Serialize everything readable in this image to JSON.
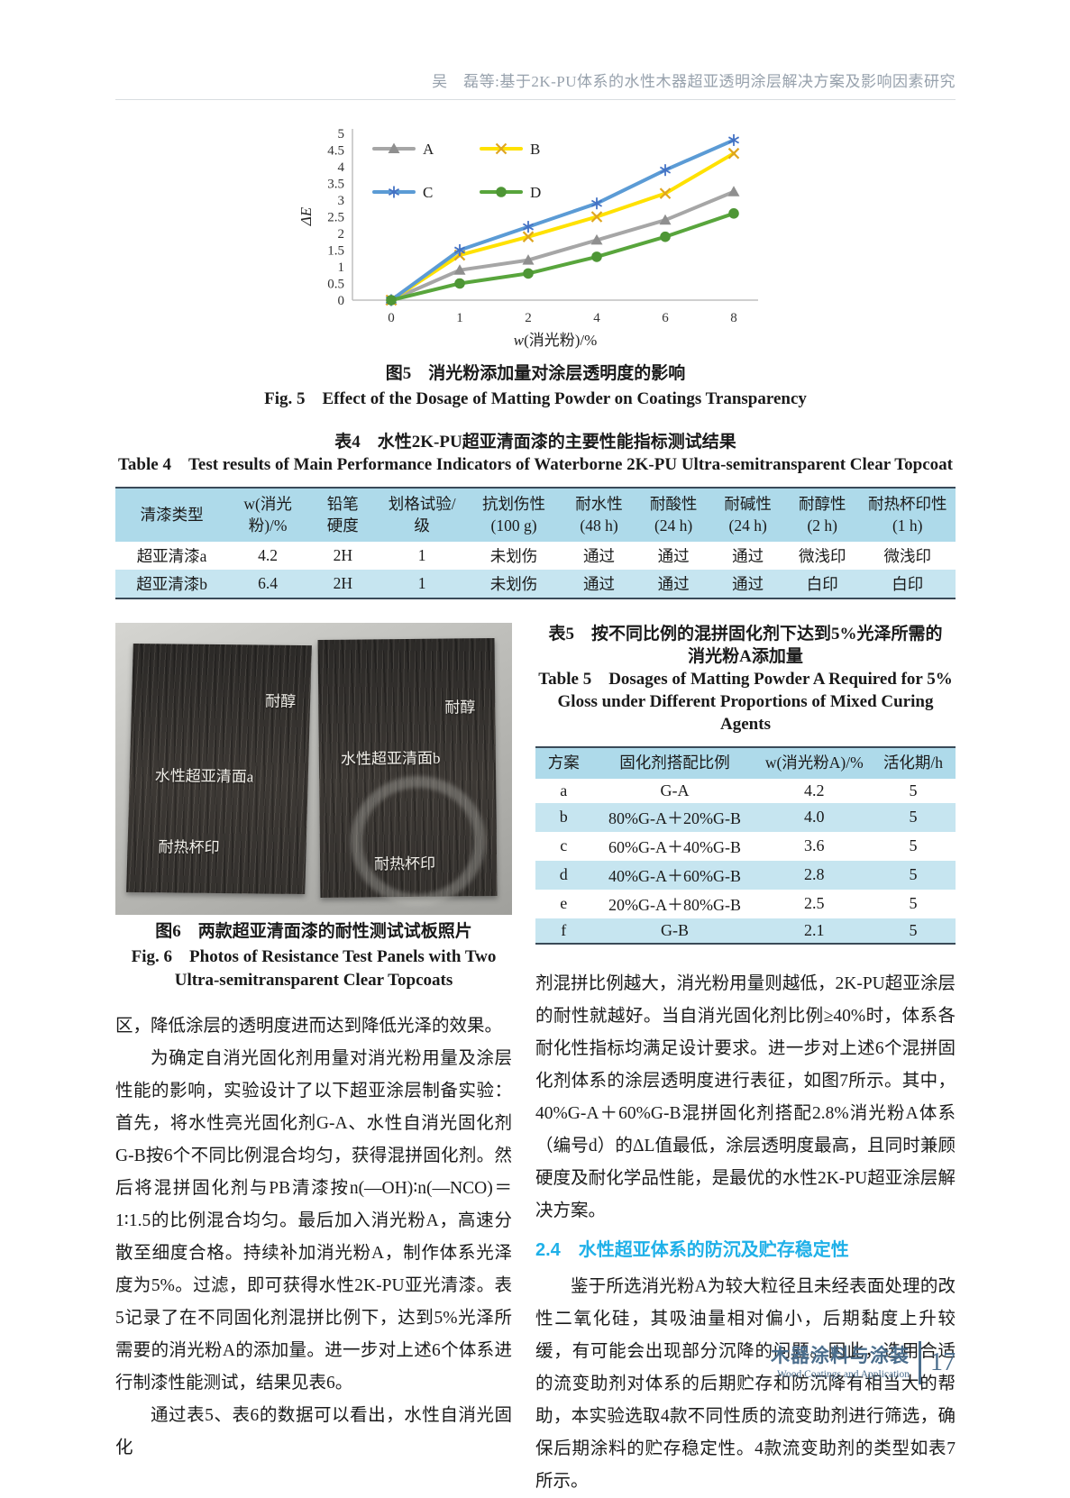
{
  "header": {
    "running_title": "吴　磊等:基于2K-PU体系的水性木器超亚透明涂层解决方案及影响因素研究"
  },
  "figure5": {
    "caption_cn": "图5　消光粉添加量对涂层透明度的影响",
    "caption_en": "Fig. 5　Effect of the Dosage of Matting Powder on Coatings Transparency"
  },
  "chart_data": {
    "type": "line",
    "x": [
      "0",
      "1",
      "2",
      "4",
      "6",
      "8"
    ],
    "series": [
      {
        "name": "A",
        "color": "#a6a6a6",
        "marker": "triangle",
        "marker_color": "#8f8f8f",
        "values": [
          0,
          0.9,
          1.2,
          1.8,
          2.4,
          3.25
        ]
      },
      {
        "name": "B",
        "color": "#ffe100",
        "marker": "x",
        "marker_color": "#dfa51f",
        "values": [
          0,
          1.35,
          1.9,
          2.5,
          3.2,
          4.4
        ]
      },
      {
        "name": "C",
        "color": "#5b9bd5",
        "marker": "asterisk",
        "marker_color": "#4472c4",
        "values": [
          0,
          1.5,
          2.2,
          2.9,
          3.9,
          4.8
        ]
      },
      {
        "name": "D",
        "color": "#58a53c",
        "marker": "circle",
        "marker_color": "#4e9635",
        "values": [
          0,
          0.5,
          0.8,
          1.3,
          1.9,
          2.6
        ]
      }
    ],
    "xlabel_italic": "w",
    "xlabel_rest": "(消光粉)/%",
    "ylabel": "ΔE",
    "ylim": [
      0,
      5
    ],
    "ytick_step": 0.5,
    "grid": false,
    "legend_position": "top-left-inside"
  },
  "table4": {
    "title_cn": "表4　水性2K-PU超亚清面漆的主要性能指标测试结果",
    "title_en": "Table 4　Test results of Main Performance Indicators of Waterborne 2K-PU Ultra-semitransparent Clear Topcoat",
    "headers": [
      "清漆类型",
      "w(消光\n粉)/%",
      "铅笔\n硬度",
      "划格试验/\n级",
      "抗划伤性\n(100 g)",
      "耐水性\n(48 h)",
      "耐酸性\n(24 h)",
      "耐碱性\n(24 h)",
      "耐醇性\n(2 h)",
      "耐热杯印性\n(1 h)"
    ],
    "rows": [
      [
        "超亚清漆a",
        "4.2",
        "2H",
        "1",
        "未划伤",
        "通过",
        "通过",
        "通过",
        "微浅印",
        "微浅印"
      ],
      [
        "超亚清漆b",
        "6.4",
        "2H",
        "1",
        "未划伤",
        "通过",
        "通过",
        "通过",
        "白印",
        "白印"
      ]
    ]
  },
  "figure6": {
    "caption_cn": "图6　两款超亚清面漆的耐性测试试板照片",
    "caption_en": "Fig. 6　Photos of Resistance Test Panels with Two\nUltra-semitransparent Clear Topcoats",
    "left_panel_labels": {
      "top": "耐醇",
      "middle": "水性超亚清面a",
      "bottom": "耐热杯印"
    },
    "right_panel_labels": {
      "top": "耐醇",
      "middle": "水性超亚清面b",
      "bottom": "耐热杯印"
    }
  },
  "table5": {
    "title_cn": "表5　按不同比例的混拼固化剂下达到5%光泽所需的\n消光粉A添加量",
    "title_en": "Table 5　Dosages of Matting Powder A Required for 5%\nGloss under Different Proportions of Mixed Curing Agents",
    "headers": [
      "方案",
      "固化剂搭配比例",
      "w(消光粉A)/%",
      "活化期/h"
    ],
    "rows": [
      [
        "a",
        "G-A",
        "4.2",
        "5"
      ],
      [
        "b",
        "80%G-A＋20%G-B",
        "4.0",
        "5"
      ],
      [
        "c",
        "60%G-A＋40%G-B",
        "3.6",
        "5"
      ],
      [
        "d",
        "40%G-A＋60%G-B",
        "2.8",
        "5"
      ],
      [
        "e",
        "20%G-A＋80%G-B",
        "2.5",
        "5"
      ],
      [
        "f",
        "G-B",
        "2.1",
        "5"
      ]
    ]
  },
  "body": {
    "left_paragraphs": [
      {
        "indent": false,
        "text": "区，降低涂层的透明度进而达到降低光泽的效果。"
      },
      {
        "indent": true,
        "text": "为确定自消光固化剂用量对消光粉用量及涂层性能的影响，实验设计了以下超亚涂层制备实验：首先，将水性亮光固化剂G-A、水性自消光固化剂G-B按6个不同比例混合均匀，获得混拼固化剂。然后将混拼固化剂与PB清漆按n(—OH)∶n(—NCO)＝1∶1.5的比例混合均匀。最后加入消光粉A，高速分散至细度合格。持续补加消光粉A，制作体系光泽度为5%。过滤，即可获得水性2K-PU亚光清漆。表5记录了在不同固化剂混拼比例下，达到5%光泽所需要的消光粉A的添加量。进一步对上述6个体系进行制漆性能测试，结果见表6。"
      },
      {
        "indent": true,
        "text": "通过表5、表6的数据可以看出，水性自消光固化"
      }
    ],
    "right_paragraphs_before_heading": [
      {
        "indent": false,
        "text": "剂混拼比例越大，消光粉用量则越低，2K-PU超亚涂层的耐性就越好。当自消光固化剂比例≥40%时，体系各耐化性指标均满足设计要求。进一步对上述6个混拼固化剂体系的涂层透明度进行表征，如图7所示。其中，40%G-A＋60%G-B混拼固化剂搭配2.8%消光粉A体系（编号d）的ΔL值最低，涂层透明度最高，且同时兼顾硬度及耐化学品性能，是最优的水性2K-PU超亚涂层解决方案。"
      }
    ],
    "section_heading": "2.4　水性超亚体系的防沉及贮存稳定性",
    "right_paragraphs_after_heading": [
      {
        "indent": true,
        "text": "鉴于所选消光粉A为较大粒径且未经表面处理的改性二氧化硅，其吸油量相对偏小，后期黏度上升较缓，有可能会出现部分沉降的问题。因此，选用合适的流变助剂对体系的后期贮存和防沉降有相当大的帮助，本实验选取4款不同性质的流变助剂进行筛选，确保后期涂料的贮存稳定性。4款流变助剂的类型如表7所示。"
      }
    ]
  },
  "footer": {
    "journal_cn": "木器涂料与涂装",
    "journal_en": "Wood Coatings and Application",
    "page_number": "17"
  },
  "colors": {
    "accent_cyan": "#1fb0e8",
    "table_header_blue": "#aedaea",
    "table_row_blue": "#c6e5f0",
    "footer_blue": "#4a6d8c",
    "running_header_gray": "#97a1ac"
  }
}
